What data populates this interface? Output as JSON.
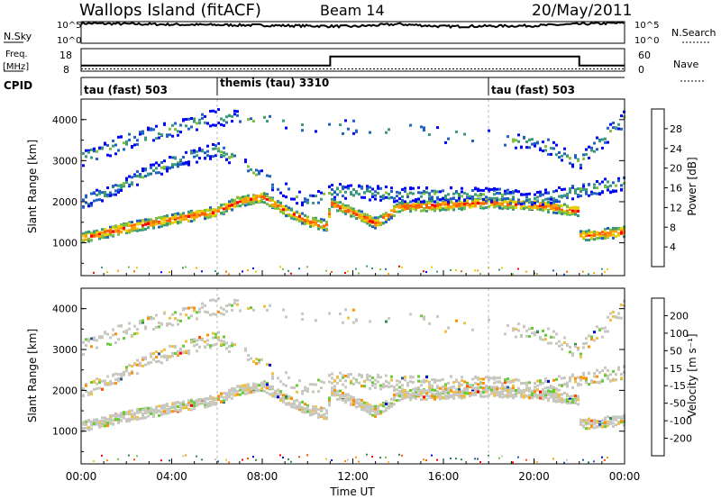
{
  "header": {
    "station": "Wallops Island (fitACF)",
    "beam": "Beam 14",
    "date": "20/May/2011"
  },
  "noise_panel": {
    "left_label": "N.Sky",
    "right_label": "N.Search",
    "left_ticks": [
      "10^5",
      "10^0"
    ],
    "right_ticks": [
      "10^5",
      "10^0"
    ]
  },
  "freq_panel": {
    "left_label_1": "Freq.",
    "left_label_2": "[MHz]",
    "right_label": "Nave",
    "left_ticks": [
      "18",
      "8"
    ],
    "right_ticks": [
      "60",
      "0"
    ]
  },
  "cpid_panel": {
    "label": "CPID",
    "modes": [
      {
        "name": "tau (fast) 503",
        "start_hour": 0
      },
      {
        "name": "themis (tau) 3310",
        "start_hour": 6
      },
      {
        "name": "tau (fast) 503",
        "start_hour": 18
      }
    ]
  },
  "power_colorbar": {
    "label": "Power [dB]",
    "ticks": [
      "28",
      "24",
      "20",
      "16",
      "12",
      "8",
      "4"
    ],
    "colors": [
      "#ff0000",
      "#ff6000",
      "#ffa000",
      "#e8d000",
      "#80c040",
      "#3a9a7a",
      "#2060c0",
      "#0000ff"
    ]
  },
  "velocity_colorbar": {
    "label": "Velocity [m s⁻¹]",
    "ticks": [
      "200",
      "100",
      "50",
      "15",
      "-15",
      "-50",
      "-100",
      "-200"
    ],
    "colors": [
      "#0000cc",
      "#2a5a9a",
      "#2a8a50",
      "#66cc33",
      "#c8c8c0",
      "#f0c040",
      "#ff9000",
      "#ff5000",
      "#ff0000"
    ]
  },
  "x_axis": {
    "label": "Time UT",
    "tick_labels": [
      "00:00",
      "04:00",
      "08:00",
      "12:00",
      "16:00",
      "20:00",
      "00:00"
    ]
  },
  "y_axis": {
    "label": "Slant Range [km]",
    "tick_labels": [
      "1000",
      "2000",
      "3000",
      "4000"
    ]
  },
  "chart_data": [
    {
      "type": "heatmap",
      "title": "Power",
      "xlabel": "",
      "ylabel": "Slant Range [km]",
      "xlim": [
        0,
        24
      ],
      "ylim": [
        200,
        4500
      ],
      "units": "dB",
      "legend": "colorbar right",
      "features": [
        {
          "desc": "main backscatter band",
          "x": [
            0,
            2,
            4,
            6,
            7,
            8,
            9,
            10,
            10.8,
            11,
            12,
            13,
            14,
            16,
            18,
            20,
            21.9,
            22,
            24
          ],
          "y": [
            1150,
            1400,
            1600,
            1800,
            2050,
            2150,
            1800,
            1550,
            1450,
            2000,
            1750,
            1500,
            1900,
            1950,
            2000,
            1950,
            1800,
            1200,
            1300
          ]
        },
        {
          "desc": "upper band",
          "x": [
            0,
            2,
            4,
            6,
            8,
            10,
            11,
            14,
            18,
            20,
            22,
            24
          ],
          "y": [
            2000,
            2500,
            3000,
            3300,
            2600,
            2000,
            2300,
            2200,
            2200,
            2100,
            2300,
            2500
          ]
        },
        {
          "desc": "far range echoes",
          "x": [
            0,
            2,
            4,
            6,
            20,
            22,
            24
          ],
          "y": [
            3100,
            3500,
            3800,
            4100,
            3500,
            3000,
            4100
          ]
        }
      ]
    },
    {
      "type": "heatmap",
      "title": "Velocity",
      "xlabel": "Time UT",
      "ylabel": "Slant Range [km]",
      "xlim": [
        0,
        24
      ],
      "ylim": [
        200,
        4500
      ],
      "units": "m s-1",
      "legend": "colorbar right"
    },
    {
      "type": "line",
      "title": "N.Sky / N.Search",
      "x": [
        0,
        4,
        8,
        12,
        13,
        14,
        16,
        20,
        22,
        24
      ],
      "y_log10": [
        4.8,
        4.5,
        4.3,
        4.0,
        4.3,
        4.6,
        4.0,
        4.2,
        4.6,
        4.9
      ]
    },
    {
      "type": "line",
      "title": "Freq. / Nave",
      "series": [
        {
          "name": "Freq.",
          "x": [
            0,
            11,
            11,
            22,
            22,
            24
          ],
          "y": [
            10.5,
            10.5,
            14.5,
            14.5,
            10.5,
            10.5
          ]
        },
        {
          "name": "Nave",
          "x": [
            0,
            24
          ],
          "y": [
            8,
            8
          ]
        }
      ],
      "ylim": [
        8,
        18
      ]
    }
  ]
}
